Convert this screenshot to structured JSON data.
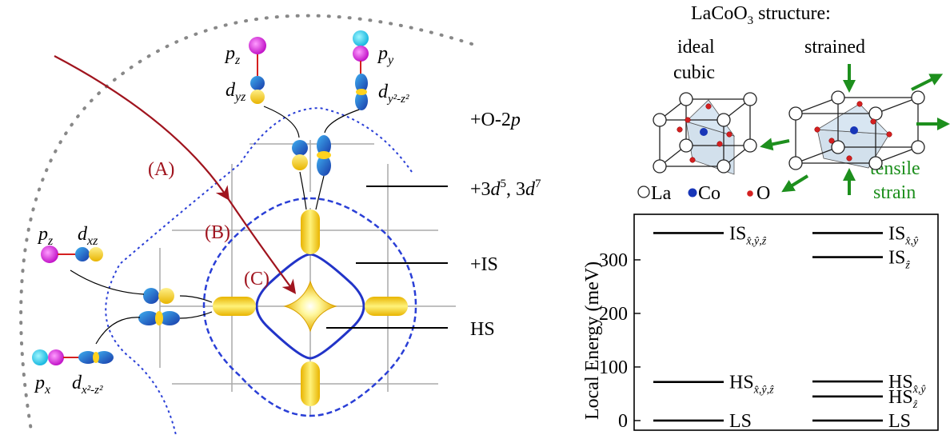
{
  "orbitals": {
    "pz_top": "p",
    "pz_top_sub": "z",
    "py_top": "p",
    "py_top_sub": "y",
    "dyz": "d",
    "dyz_sub": "yz",
    "dy2z2": "d",
    "dy2z2_sub": "y²-z²",
    "pz_left": "p",
    "pz_left_sub": "z",
    "dxz": "d",
    "dxz_sub": "xz",
    "px_left": "p",
    "px_left_sub": "x",
    "dx2z2": "d",
    "dx2z2_sub": "x²-z²"
  },
  "regions": {
    "A": "(A)",
    "B": "(B)",
    "C": "(C)"
  },
  "annotations": {
    "o2p": "+O-2",
    "o2p_ital": "p",
    "d5d7_a": "+3",
    "d5d7_d1": "d",
    "d5d7_sup1": "5",
    "d5d7_mid": ", 3",
    "d5d7_d2": "d",
    "d5d7_sup2": "7",
    "is": "+IS",
    "hs": "HS"
  },
  "structure": {
    "title_pre": "LaCoO",
    "title_sub": "3",
    "title_post": " structure:",
    "ideal_line1": "ideal",
    "ideal_line2": "cubic",
    "strained": "strained",
    "tensile_line1": "tensile",
    "tensile_line2": "strain",
    "legend": [
      "La",
      "Co",
      "O"
    ],
    "colors": {
      "La": "#ffffff",
      "Co": "#1836b8",
      "O": "#d42020",
      "arrow": "#1d8f1d",
      "octa": "#b4cce0"
    }
  },
  "chart_data": {
    "type": "energy-levels",
    "ylabel": "Local Energy (meV)",
    "ylim": [
      -18,
      385
    ],
    "yticks": [
      0,
      100,
      200,
      300
    ],
    "columns": [
      "ideal cubic",
      "strained"
    ],
    "levels_left": [
      {
        "name": "LS",
        "sub": "",
        "energy": 0
      },
      {
        "name": "HS",
        "sub": "x̂,ŷ,ẑ",
        "energy": 72
      },
      {
        "name": "IS",
        "sub": "x̂,ŷ,ẑ",
        "energy": 350
      }
    ],
    "levels_right": [
      {
        "name": "LS",
        "sub": "",
        "energy": 0
      },
      {
        "name": "HS",
        "sub": "ẑ",
        "energy": 45
      },
      {
        "name": "HS",
        "sub": "x̂,ŷ",
        "energy": 73
      },
      {
        "name": "IS",
        "sub": "ẑ",
        "energy": 305
      },
      {
        "name": "IS",
        "sub": "x̂,ŷ",
        "energy": 350
      }
    ]
  }
}
